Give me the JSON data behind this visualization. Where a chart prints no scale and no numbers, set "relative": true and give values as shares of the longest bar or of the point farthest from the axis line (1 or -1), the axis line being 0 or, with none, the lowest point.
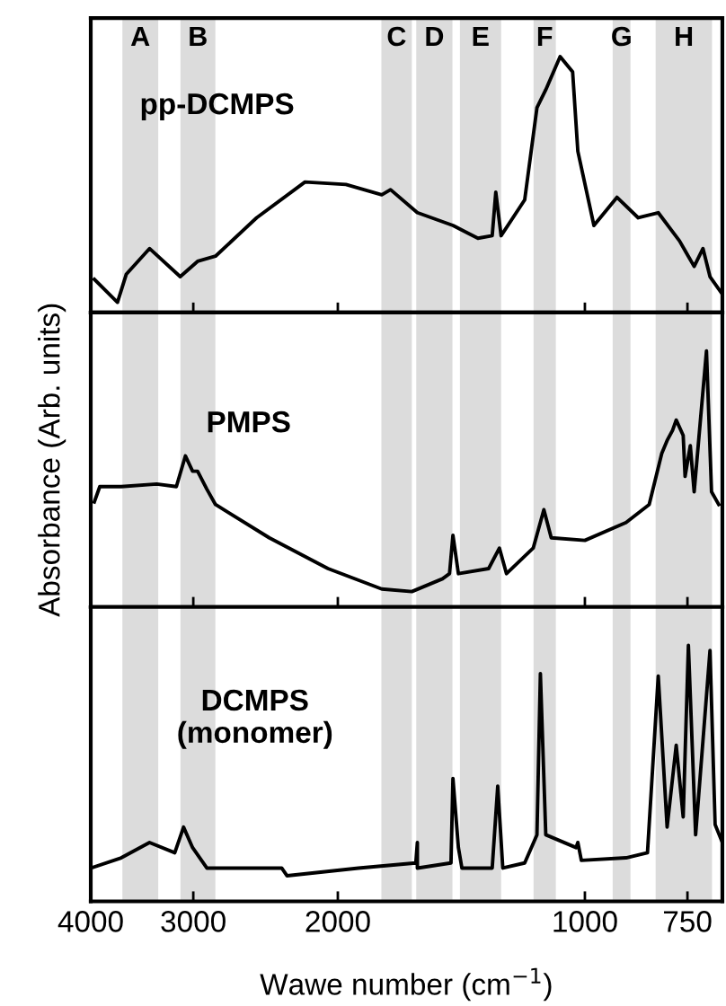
{
  "chart_data": [
    {
      "type": "line",
      "relative": true,
      "xlim": [
        4000,
        680
      ],
      "xticks": [
        4000,
        3000,
        2000,
        1000,
        750
      ],
      "log": "x",
      "tick_labels": false,
      "bands": [
        {
          "axis": "x",
          "from": 3310,
          "to": 3660,
          "label": "A",
          "color": "#dcdcdc"
        },
        {
          "axis": "x",
          "from": 2820,
          "to": 3110,
          "label": "B",
          "color": "#dcdcdc"
        },
        {
          "axis": "x",
          "from": 1625,
          "to": 1770,
          "label": "C",
          "color": "#dcdcdc"
        },
        {
          "axis": "x",
          "from": 1450,
          "to": 1605,
          "label": "D",
          "color": "#dcdcdc"
        },
        {
          "axis": "x",
          "from": 1265,
          "to": 1420,
          "label": "E",
          "color": "#dcdcdc"
        },
        {
          "axis": "x",
          "from": 1085,
          "to": 1155,
          "label": "F",
          "color": "#dcdcdc"
        },
        {
          "axis": "x",
          "from": 880,
          "to": 925,
          "label": "G",
          "color": "#dcdcdc"
        },
        {
          "axis": "x",
          "from": 700,
          "to": 820,
          "label": "H",
          "color": "#dcdcdc"
        }
      ],
      "series": [
        {
          "name": "pp-DCMPS",
          "color": "#000000",
          "x": [
            3960,
            3711,
            3620,
            3392,
            3112,
            2964,
            2819,
            2512,
            2193,
            1955,
            1768,
            1725,
            1600,
            1448,
            1350,
            1297,
            1284,
            1265,
            1184,
            1144,
            1116,
            1072,
            1035,
            1020,
            975,
            914,
            861,
            814,
            767,
            736,
            718,
            704,
            683
          ],
          "values": [
            0.13,
            0.04,
            0.15,
            0.25,
            0.14,
            0.2,
            0.22,
            0.37,
            0.51,
            0.5,
            0.46,
            0.48,
            0.39,
            0.34,
            0.29,
            0.3,
            0.47,
            0.3,
            0.44,
            0.8,
            0.87,
            1.0,
            0.94,
            0.63,
            0.34,
            0.45,
            0.37,
            0.39,
            0.28,
            0.18,
            0.25,
            0.14,
            0.08
          ]
        }
      ]
    },
    {
      "type": "line",
      "relative": true,
      "xlim": [
        4000,
        680
      ],
      "xticks": [
        4000,
        3000,
        2000,
        1000,
        750
      ],
      "log": "x",
      "tick_labels": false,
      "ylabel": "Absorbance (Arb. units)",
      "bands": [
        {
          "axis": "x",
          "from": 3310,
          "to": 3660,
          "color": "#dcdcdc"
        },
        {
          "axis": "x",
          "from": 2820,
          "to": 3110,
          "color": "#dcdcdc"
        },
        {
          "axis": "x",
          "from": 1625,
          "to": 1770,
          "color": "#dcdcdc"
        },
        {
          "axis": "x",
          "from": 1450,
          "to": 1605,
          "color": "#dcdcdc"
        },
        {
          "axis": "x",
          "from": 1265,
          "to": 1420,
          "color": "#dcdcdc"
        },
        {
          "axis": "x",
          "from": 1085,
          "to": 1155,
          "color": "#dcdcdc"
        },
        {
          "axis": "x",
          "from": 880,
          "to": 925,
          "color": "#dcdcdc"
        },
        {
          "axis": "x",
          "from": 700,
          "to": 820,
          "color": "#dcdcdc"
        }
      ],
      "series": [
        {
          "name": "PMPS",
          "color": "#000000",
          "x": [
            3960,
            3900,
            3672,
            3324,
            3146,
            3067,
            3006,
            2964,
            2888,
            2819,
            2424,
            2056,
            1768,
            1625,
            1491,
            1462,
            1448,
            1426,
            1310,
            1271,
            1246,
            1156,
            1122,
            1099,
            1000,
            891,
            835,
            806,
            794,
            782,
            774,
            759,
            755,
            744,
            736,
            711,
            701,
            687
          ],
          "values": [
            0.41,
            0.47,
            0.47,
            0.48,
            0.47,
            0.59,
            0.53,
            0.53,
            0.46,
            0.4,
            0.27,
            0.15,
            0.07,
            0.06,
            0.11,
            0.13,
            0.28,
            0.13,
            0.15,
            0.23,
            0.13,
            0.23,
            0.38,
            0.27,
            0.26,
            0.33,
            0.4,
            0.6,
            0.65,
            0.69,
            0.73,
            0.67,
            0.51,
            0.63,
            0.45,
            1.0,
            0.45,
            0.4
          ]
        }
      ]
    },
    {
      "type": "line",
      "relative": true,
      "xlim": [
        4000,
        680
      ],
      "xticks": [
        4000,
        3000,
        2000,
        1000,
        750
      ],
      "log": "x",
      "tick_labels": "x",
      "xlabel": "Wawe number (cm$^{−1}$)",
      "bands": [
        {
          "axis": "x",
          "from": 3310,
          "to": 3660,
          "color": "#dcdcdc"
        },
        {
          "axis": "x",
          "from": 2820,
          "to": 3110,
          "color": "#dcdcdc"
        },
        {
          "axis": "x",
          "from": 1625,
          "to": 1770,
          "color": "#dcdcdc"
        },
        {
          "axis": "x",
          "from": 1450,
          "to": 1605,
          "color": "#dcdcdc"
        },
        {
          "axis": "x",
          "from": 1265,
          "to": 1420,
          "color": "#dcdcdc"
        },
        {
          "axis": "x",
          "from": 1085,
          "to": 1155,
          "color": "#dcdcdc"
        },
        {
          "axis": "x",
          "from": 880,
          "to": 925,
          "color": "#dcdcdc"
        },
        {
          "axis": "x",
          "from": 700,
          "to": 820,
          "color": "#dcdcdc"
        }
      ],
      "series": [
        {
          "name": "DCMPS\n(monomer)",
          "color": "#000000",
          "x": [
            4000,
            3672,
            3392,
            3160,
            3083,
            3006,
            2888,
            2341,
            2306,
            1888,
            1607,
            1600,
            1600,
            1456,
            1448,
            1426,
            1412,
            1297,
            1277,
            1259,
            1184,
            1144,
            1133,
            1116,
            1025,
            1020,
            1010,
            891,
            839,
            814,
            794,
            774,
            759,
            748,
            733,
            704,
            694,
            680
          ],
          "values": [
            0.13,
            0.17,
            0.23,
            0.19,
            0.29,
            0.21,
            0.13,
            0.13,
            0.1,
            0.13,
            0.15,
            0.23,
            0.13,
            0.15,
            0.48,
            0.21,
            0.13,
            0.13,
            0.45,
            0.13,
            0.15,
            0.26,
            0.89,
            0.26,
            0.21,
            0.23,
            0.16,
            0.17,
            0.19,
            0.88,
            0.29,
            0.61,
            0.33,
            1.0,
            0.26,
            0.98,
            0.3,
            0.23
          ]
        }
      ]
    }
  ]
}
